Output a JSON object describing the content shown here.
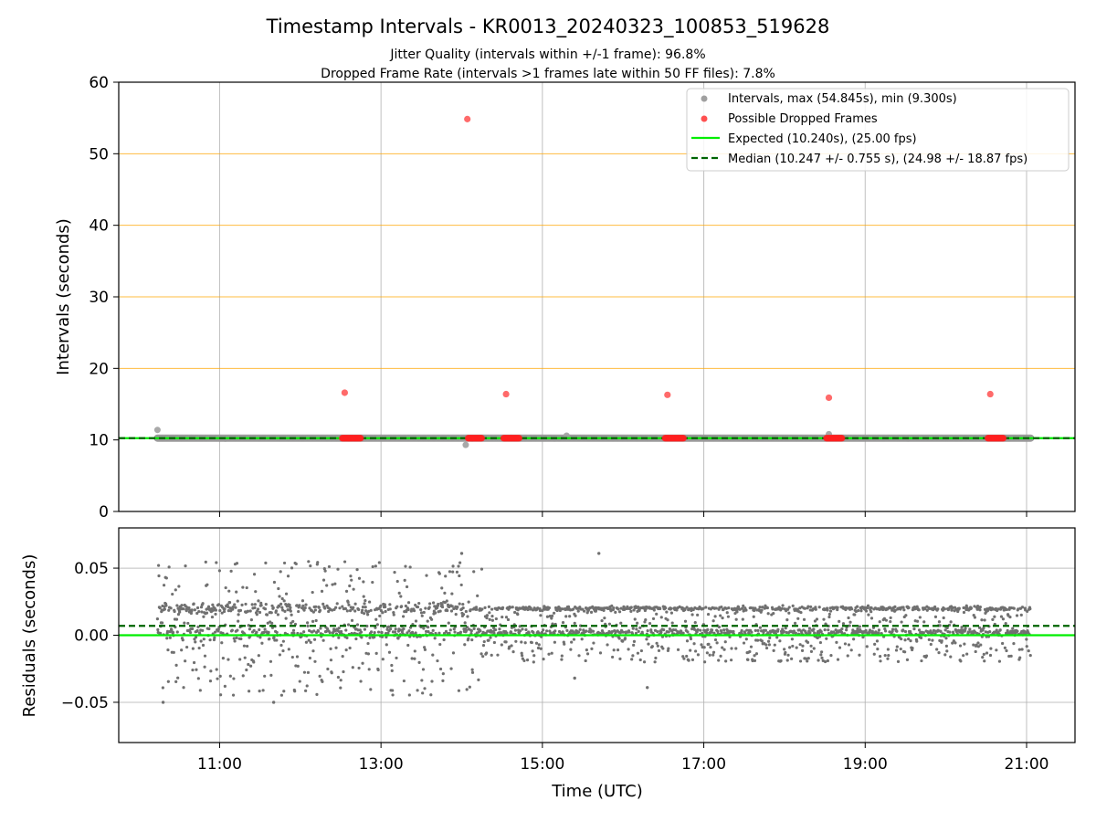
{
  "title": "Timestamp Intervals - KR0013_20240323_100853_519628",
  "subtitle_1": "Jitter Quality (intervals within +/-1 frame): 96.8%",
  "subtitle_2": "Dropped Frame Rate (intervals >1 frames late within 50 FF files): 7.8%",
  "colors": {
    "intervals": "#808080",
    "dropped": "#ff0000",
    "expected": "#00ee00",
    "median": "#006400",
    "threshold_lines": "#ffa500",
    "grid": "#b0b0b0",
    "residual_points": "#707070"
  },
  "chart_data": [
    {
      "type": "scatter",
      "panel": "top",
      "ylabel": "Intervals (seconds)",
      "ylim": [
        0,
        60
      ],
      "yticks": [
        "0",
        "10",
        "20",
        "30",
        "40",
        "50",
        "60"
      ],
      "xlim_hours": [
        9.75,
        21.6
      ],
      "xtick_hours": [
        11,
        13,
        15,
        17,
        19,
        21
      ],
      "horizontal_lines": [
        20,
        30,
        40,
        50
      ],
      "grid": "vertical",
      "legend_position": "upper-right",
      "legend": [
        {
          "label": "Intervals, max (54.845s), min (9.300s)",
          "kind": "marker",
          "color": "#a0a0a0"
        },
        {
          "label": "Possible Dropped Frames",
          "kind": "marker",
          "color": "#ff5050"
        },
        {
          "label": "Expected (10.240s), (25.00 fps)",
          "kind": "line",
          "color": "#00ee00",
          "dash": "solid"
        },
        {
          "label": "Median (10.247 +/- 0.755 s), (24.98 +/- 18.87 fps)",
          "kind": "line",
          "color": "#006400",
          "dash": "dashed"
        }
      ],
      "expected_value": 10.24,
      "median_value": 10.247,
      "interval_series_range_hours": [
        10.23,
        21.05
      ],
      "interval_outliers": [
        {
          "x": 10.23,
          "y": 11.4
        },
        {
          "x": 14.05,
          "y": 9.3
        },
        {
          "x": 15.3,
          "y": 10.6
        },
        {
          "x": 18.55,
          "y": 10.8
        }
      ],
      "dropped_frames_high": [
        {
          "x": 12.55,
          "y": 16.6
        },
        {
          "x": 14.07,
          "y": 54.845
        },
        {
          "x": 14.55,
          "y": 16.4
        },
        {
          "x": 16.55,
          "y": 16.3
        },
        {
          "x": 18.55,
          "y": 15.9
        },
        {
          "x": 20.55,
          "y": 16.4
        }
      ],
      "dropped_frames_clusters": [
        {
          "x_start": 12.52,
          "x_end": 12.75,
          "y": 10.24
        },
        {
          "x_start": 14.08,
          "x_end": 14.25,
          "y": 10.24
        },
        {
          "x_start": 14.52,
          "x_end": 14.72,
          "y": 10.24
        },
        {
          "x_start": 16.52,
          "x_end": 16.75,
          "y": 10.24
        },
        {
          "x_start": 18.52,
          "x_end": 18.72,
          "y": 10.24
        },
        {
          "x_start": 20.52,
          "x_end": 20.72,
          "y": 10.24
        }
      ]
    },
    {
      "type": "scatter",
      "panel": "bottom",
      "ylabel": "Residuals (seconds)",
      "xlabel": "Time (UTC)",
      "ylim": [
        -0.08,
        0.08
      ],
      "yticks": [
        {
          "value": 0.05,
          "label": "0.05"
        },
        {
          "value": 0.0,
          "label": "0.00"
        },
        {
          "value": -0.05,
          "label": "−0.05"
        }
      ],
      "xlim_hours": [
        9.75,
        21.6
      ],
      "xtick_hours": [
        11,
        13,
        15,
        17,
        19,
        21
      ],
      "xtick_labels": [
        "11:00",
        "13:00",
        "15:00",
        "17:00",
        "19:00",
        "21:00"
      ],
      "grid": "both",
      "expected_residual": 0.0,
      "median_residual": 0.007,
      "x_range_hours": [
        10.23,
        21.05
      ],
      "spread_before_1415": {
        "low": -0.045,
        "high": 0.055,
        "bands": [
          0.002,
          0.02
        ]
      },
      "spread_after_1415": {
        "low": -0.02,
        "high": 0.025,
        "bands": [
          0.002,
          0.02
        ]
      },
      "notable_points": [
        {
          "x": 10.3,
          "y": -0.05
        },
        {
          "x": 11.67,
          "y": -0.05
        },
        {
          "x": 15.7,
          "y": 0.061
        },
        {
          "x": 14.0,
          "y": 0.061
        },
        {
          "x": 16.3,
          "y": -0.039
        },
        {
          "x": 15.4,
          "y": -0.032
        }
      ]
    }
  ]
}
